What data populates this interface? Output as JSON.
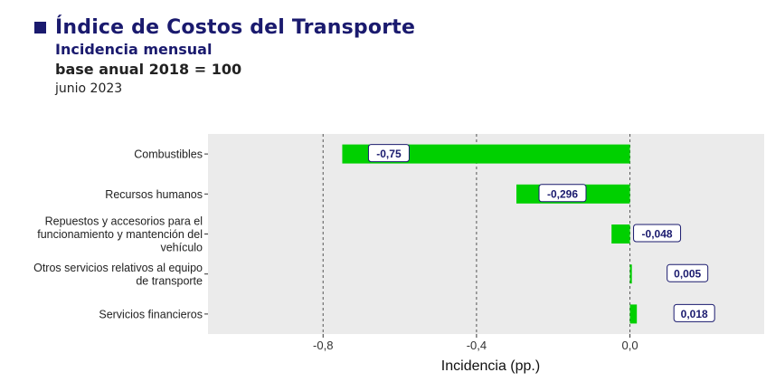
{
  "header": {
    "title": "Índice de Costos del Transporte",
    "subtitle": "Incidencia mensual",
    "base": "base anual 2018 = 100",
    "period": "junio 2023"
  },
  "colors": {
    "bar": "#00d000",
    "panel": "#ebebeb",
    "label_border": "#1a1a6e",
    "label_text": "#1a1a6e",
    "title": "#1a1a6e"
  },
  "chart_data": {
    "type": "bar",
    "orientation": "horizontal",
    "xlabel": "Incidencia (pp.)",
    "ylabel": "",
    "xlim": [
      -1.1,
      0.35
    ],
    "xticks": [
      -0.8,
      -0.4,
      0.0
    ],
    "xtick_labels": [
      "-0,8",
      "-0,4",
      "0,0"
    ],
    "grid": "vertical dashed at ticks",
    "categories": [
      "Combustibles",
      "Recursos humanos",
      "Repuestos y accesorios para el funcionamiento y mantención del vehículo",
      "Otros servicios relativos al equipo de transporte",
      "Servicios financieros"
    ],
    "category_lines": [
      [
        "Combustibles"
      ],
      [
        "Recursos humanos"
      ],
      [
        "Repuestos y accesorios para el",
        "funcionamiento y mantención del",
        "vehículo"
      ],
      [
        "Otros servicios relativos al equipo",
        "de transporte"
      ],
      [
        "Servicios financieros"
      ]
    ],
    "values": [
      -0.75,
      -0.296,
      -0.048,
      0.005,
      0.018
    ],
    "value_labels": [
      "-0,75",
      "-0,296",
      "-0,048",
      "0,005",
      "0,018"
    ]
  }
}
